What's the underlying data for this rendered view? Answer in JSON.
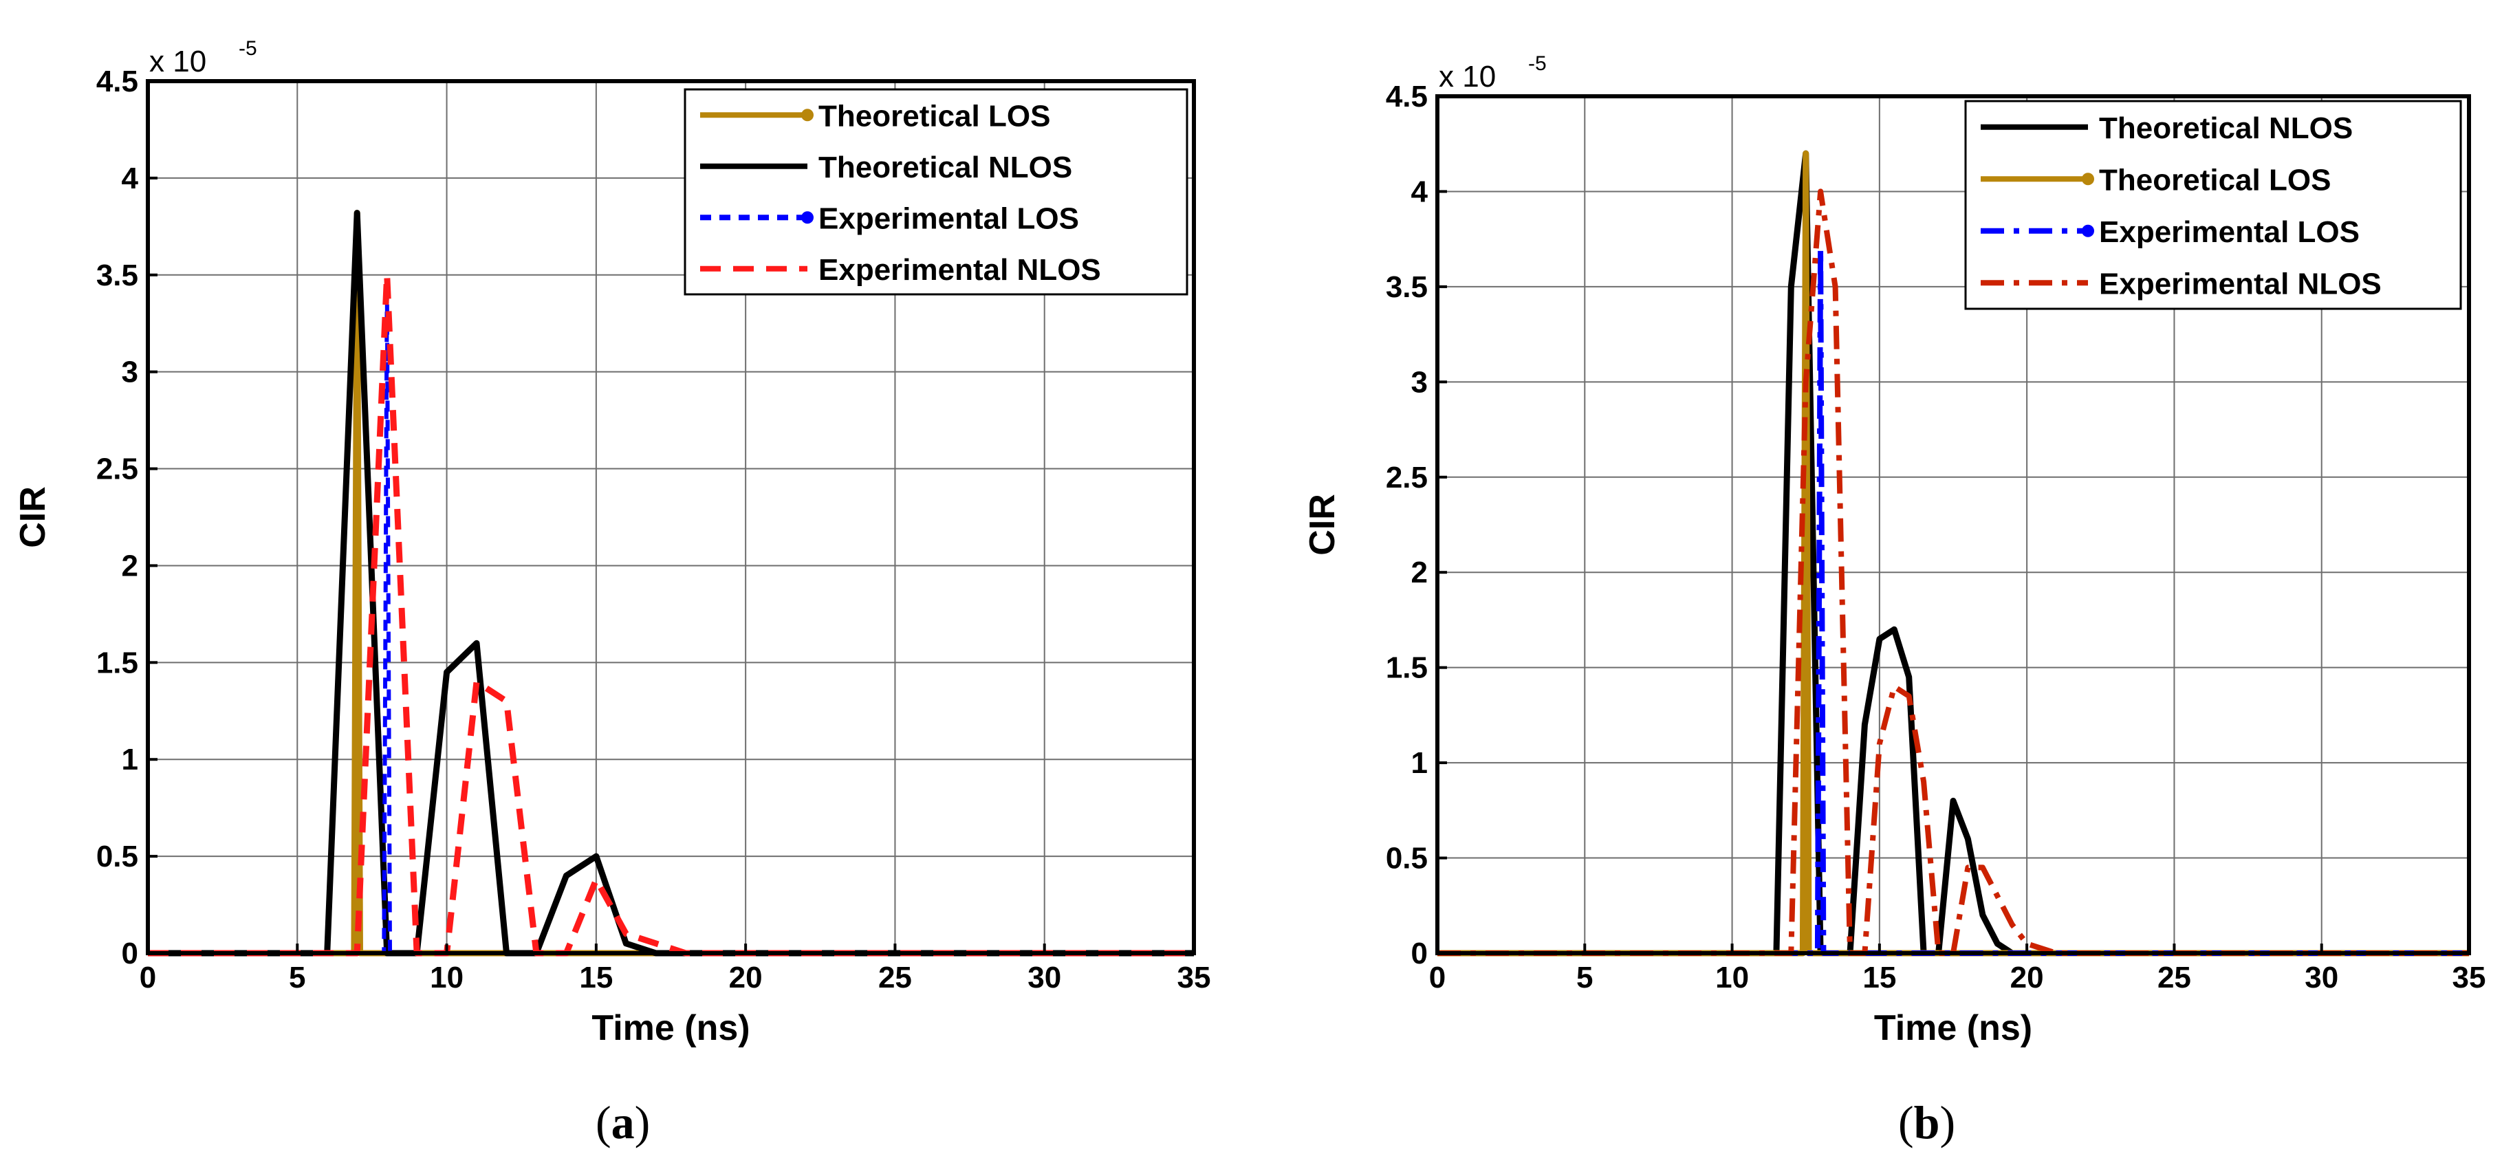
{
  "chart_data": [
    {
      "type": "line",
      "caption": {
        "open": "(",
        "letter": "a",
        "close": ")"
      },
      "xlabel": "Time (ns)",
      "ylabel": "CIR",
      "y_scale_label": "x 10",
      "y_scale_exponent": "-5",
      "xlim": [
        0,
        35
      ],
      "ylim": [
        0,
        4.5
      ],
      "xticks": [
        0,
        5,
        10,
        15,
        20,
        25,
        30,
        35
      ],
      "yticks": [
        0,
        0.5,
        1,
        1.5,
        2,
        2.5,
        3,
        3.5,
        4,
        4.5
      ],
      "grid": true,
      "legend_position": "top-right",
      "series": [
        {
          "name": "Theoretical LOS",
          "color": "#B8860B",
          "style": "solid-dot",
          "x": [
            0,
            6.9,
            7,
            7.1,
            35
          ],
          "y": [
            0,
            0,
            3.82,
            0,
            0
          ]
        },
        {
          "name": "Theoretical NLOS",
          "color": "#000000",
          "style": "solid",
          "x": [
            0,
            6,
            7,
            8,
            9,
            10,
            11,
            12,
            13,
            14,
            15,
            16,
            17,
            18,
            35
          ],
          "y": [
            0,
            0,
            3.82,
            0,
            0,
            1.45,
            1.6,
            0,
            0,
            0.4,
            0.5,
            0.05,
            0,
            0,
            0
          ]
        },
        {
          "name": "Experimental LOS",
          "color": "#0000FF",
          "style": "dashed-dot",
          "x": [
            0,
            7.9,
            8,
            8.1,
            35
          ],
          "y": [
            0,
            0,
            3.45,
            0,
            0
          ]
        },
        {
          "name": "Experimental NLOS",
          "color": "#FF1A1A",
          "style": "dashed",
          "x": [
            0,
            7,
            8,
            9,
            10,
            11,
            12,
            13,
            14,
            15,
            16,
            17,
            18,
            35
          ],
          "y": [
            0,
            0,
            3.5,
            0,
            0,
            1.4,
            1.3,
            0,
            0,
            0.38,
            0.1,
            0.05,
            0,
            0
          ]
        }
      ]
    },
    {
      "type": "line",
      "caption": {
        "open": "(",
        "letter": "b",
        "close": ")"
      },
      "xlabel": "Time (ns)",
      "ylabel": "CIR",
      "y_scale_label": "x 10",
      "y_scale_exponent": "-5",
      "xlim": [
        0,
        35
      ],
      "ylim": [
        0,
        4.5
      ],
      "xticks": [
        0,
        5,
        10,
        15,
        20,
        25,
        30,
        35
      ],
      "yticks": [
        0,
        0.5,
        1,
        1.5,
        2,
        2.5,
        3,
        3.5,
        4,
        4.5
      ],
      "grid": true,
      "legend_position": "top-right",
      "series": [
        {
          "name": "Theoretical NLOS",
          "color": "#000000",
          "style": "solid",
          "x": [
            0,
            11.5,
            12,
            12.5,
            13,
            13.5,
            14,
            14.5,
            15,
            15.5,
            16,
            16.5,
            17,
            17.5,
            18,
            18.5,
            19,
            19.5,
            35
          ],
          "y": [
            0,
            0,
            3.5,
            4.2,
            0,
            0,
            0,
            1.2,
            1.65,
            1.7,
            1.45,
            0,
            0,
            0.8,
            0.6,
            0.2,
            0.05,
            0,
            0
          ]
        },
        {
          "name": "Theoretical LOS",
          "color": "#B8860B",
          "style": "solid-dot",
          "x": [
            0,
            12.4,
            12.5,
            12.6,
            35
          ],
          "y": [
            0,
            0,
            4.2,
            0,
            0
          ]
        },
        {
          "name": "Experimental LOS",
          "color": "#0000FF",
          "style": "dashdot-dot",
          "x": [
            0,
            12.9,
            13,
            13.1,
            35
          ],
          "y": [
            0,
            0,
            3.7,
            0,
            0
          ]
        },
        {
          "name": "Experimental NLOS",
          "color": "#CC2200",
          "style": "dashdot",
          "x": [
            0,
            12,
            12.5,
            13,
            13.5,
            14,
            14.5,
            15,
            15.5,
            16,
            16.5,
            17,
            17.5,
            18,
            18.5,
            19,
            19.5,
            20,
            21,
            35
          ],
          "y": [
            0,
            0,
            3.0,
            4.0,
            3.5,
            0,
            0,
            1.1,
            1.4,
            1.35,
            0.9,
            0,
            0,
            0.45,
            0.45,
            0.3,
            0.15,
            0.05,
            0,
            0
          ]
        }
      ]
    }
  ]
}
